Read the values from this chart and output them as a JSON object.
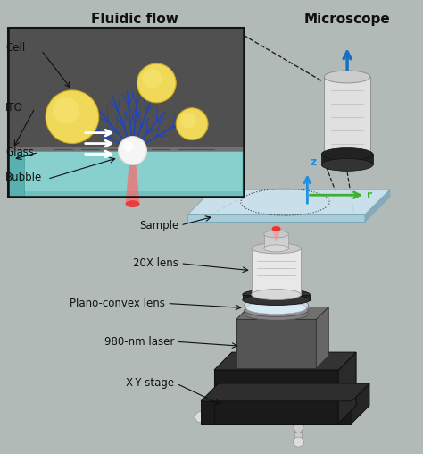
{
  "background_color": "#b2bab8",
  "fig_width": 4.74,
  "fig_height": 5.08,
  "dpi": 100,
  "labels": {
    "fluidic_flow": "Fluidic flow",
    "microscope": "Microscope",
    "cell": "Cell",
    "ito": "ITO",
    "glass": "Glass",
    "bubble": "Bubble",
    "sample": "Sample",
    "lens_20x": "20X lens",
    "plano_convex": "Plano-convex lens",
    "laser_980": "980-nm laser",
    "xy_stage": "X-Y stage",
    "z_label": "z",
    "r_label": "r"
  },
  "axis_z_color": "#2090e0",
  "axis_r_color": "#40b030",
  "inset_bg": "#585858",
  "inset_glass_color": "#88d0d0",
  "cell_color": "#f0d858",
  "cell_edge": "#c8a820",
  "dendrite_color": "#2244bb",
  "bubble_color": "#ffffff",
  "laser_red": "#ee3333"
}
